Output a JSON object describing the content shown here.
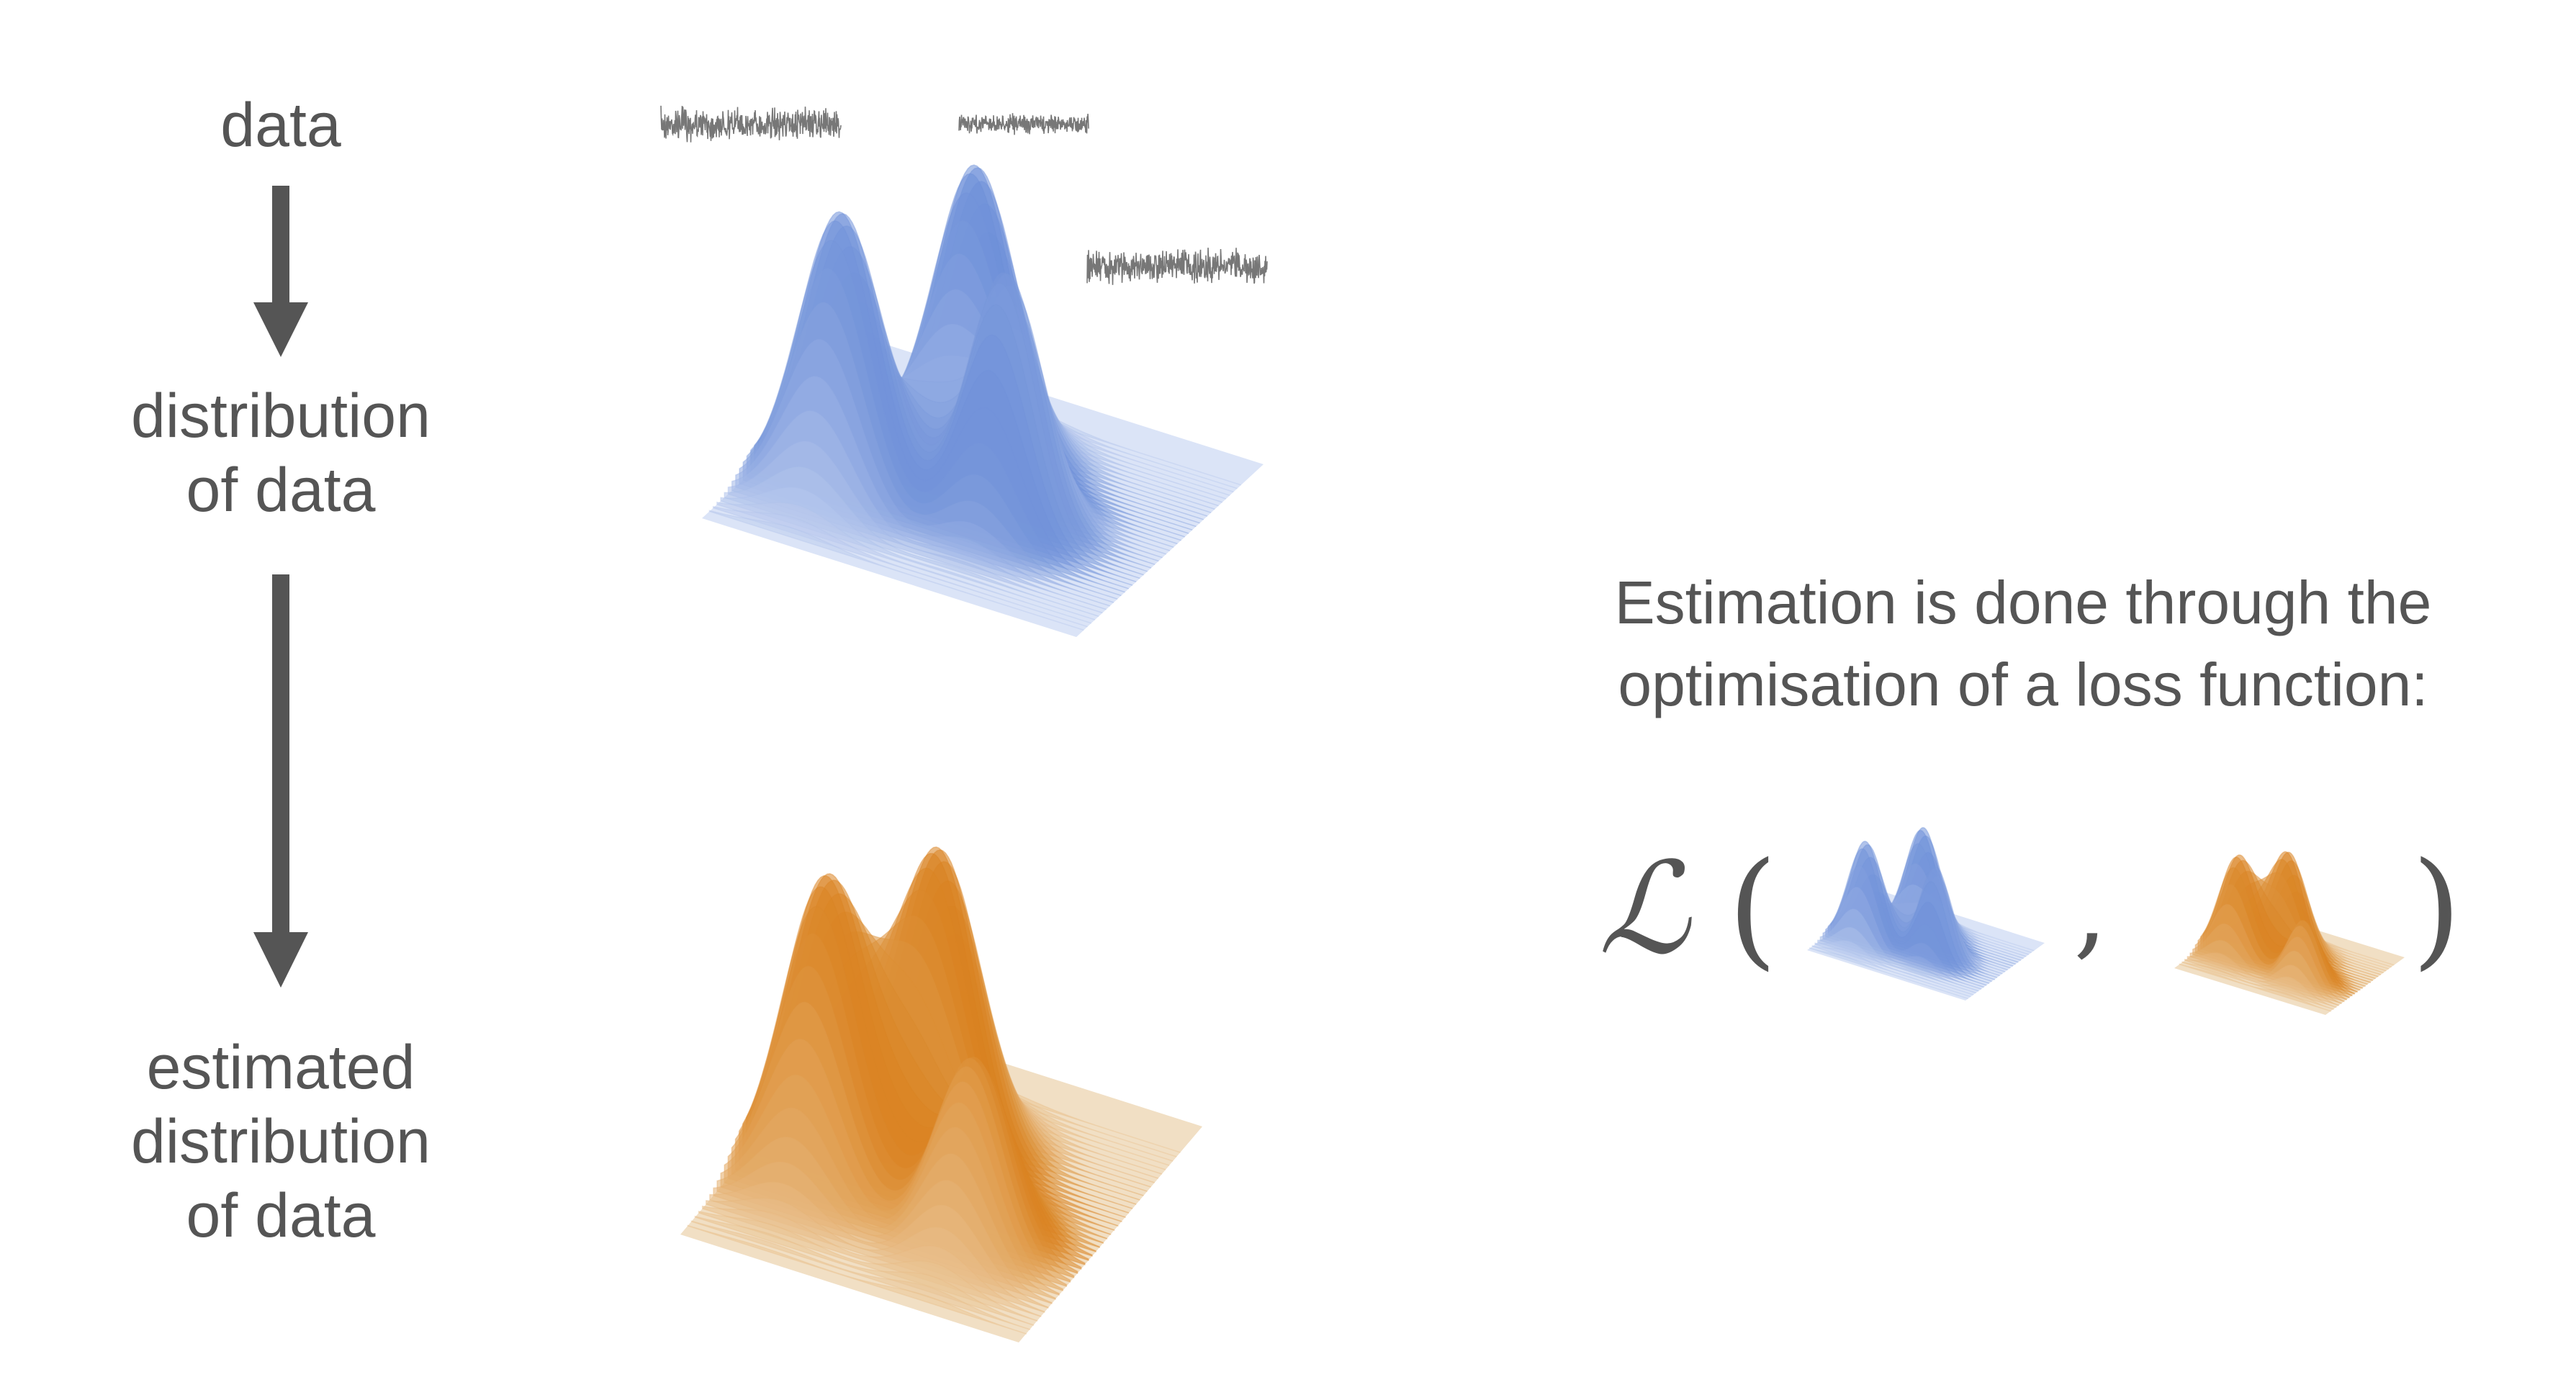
{
  "steps": {
    "data": "data",
    "distribution": [
      "distribution",
      "of data"
    ],
    "estimated": [
      "estimated",
      "distribution",
      "of data"
    ]
  },
  "note": [
    "Estimation is done through the",
    "optimisation of a loss function:"
  ],
  "loss": {
    "symbol": "ℒ",
    "open": "(",
    "separator": ",",
    "close": ")"
  },
  "colors": {
    "text": "#555555",
    "arrow": "#555555",
    "true_peak": "#6d8fd8",
    "true_base": "#dbe4f7",
    "est_peak": "#d9821f",
    "est_base": "#f1dfc4",
    "noise": "#777777"
  },
  "icons": [
    "down-arrow-icon",
    "noise-trace-icon",
    "surface-plot-icon"
  ]
}
